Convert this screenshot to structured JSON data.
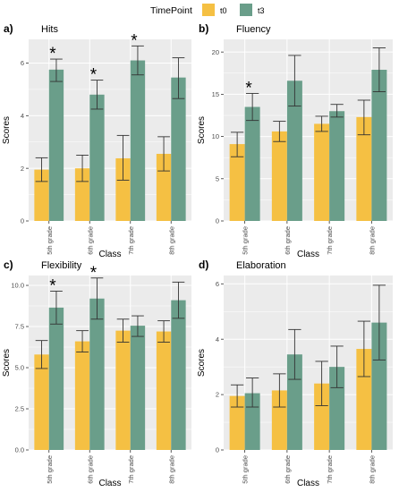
{
  "legend": {
    "title": "TimePoint",
    "items": [
      {
        "label": "t0",
        "color": "#F5C043"
      },
      {
        "label": "t3",
        "color": "#6A9E8A"
      }
    ]
  },
  "colors": {
    "panel_bg": "#EBEBEB",
    "grid": "#FFFFFF",
    "error_bar": "#333333"
  },
  "chart_data": [
    {
      "type": "bar",
      "letter": "a)",
      "title": "Hits",
      "xlabel": "Class",
      "ylabel": "Scores",
      "categories": [
        "5th grade",
        "6th grade",
        "7th grade",
        "8th grade"
      ],
      "ylim": [
        0,
        6.9
      ],
      "yticks": [
        0,
        2,
        4,
        6
      ],
      "yticklabels": [
        "0",
        "2",
        "4",
        "6"
      ],
      "series": [
        {
          "name": "t0",
          "values": [
            1.95,
            2.0,
            2.38,
            2.55
          ],
          "err_low": [
            1.5,
            1.5,
            1.55,
            1.9
          ],
          "err_high": [
            2.4,
            2.5,
            3.25,
            3.2
          ]
        },
        {
          "name": "t3",
          "values": [
            5.75,
            4.8,
            6.1,
            5.45
          ],
          "err_low": [
            5.3,
            4.25,
            5.55,
            4.65
          ],
          "err_high": [
            6.15,
            5.35,
            6.65,
            6.2
          ]
        }
      ],
      "significance": [
        "*",
        "*",
        "*",
        ""
      ]
    },
    {
      "type": "bar",
      "letter": "b)",
      "title": "Fluency",
      "xlabel": "Class",
      "ylabel": "Scores",
      "categories": [
        "5th grade",
        "6th grade",
        "7th grade",
        "8th grade"
      ],
      "ylim": [
        0,
        21.5
      ],
      "yticks": [
        0,
        5,
        10,
        15,
        20
      ],
      "yticklabels": [
        "0",
        "5",
        "10",
        "15",
        "20"
      ],
      "series": [
        {
          "name": "t0",
          "values": [
            9.1,
            10.6,
            11.5,
            12.3
          ],
          "err_low": [
            7.6,
            9.4,
            10.6,
            10.2
          ],
          "err_high": [
            10.5,
            11.8,
            12.4,
            14.3
          ]
        },
        {
          "name": "t3",
          "values": [
            13.5,
            16.6,
            13.0,
            17.9
          ],
          "err_low": [
            11.9,
            13.6,
            12.3,
            15.3
          ],
          "err_high": [
            15.1,
            19.6,
            13.8,
            20.5
          ]
        }
      ],
      "significance": [
        "*",
        "",
        "",
        ""
      ]
    },
    {
      "type": "bar",
      "letter": "c)",
      "title": "Flexibility",
      "xlabel": "Class",
      "ylabel": "Scores",
      "categories": [
        "5th grade",
        "6th grade",
        "7th grade",
        "8th grade"
      ],
      "ylim": [
        0,
        10.6
      ],
      "yticks": [
        0,
        2.5,
        5,
        7.5,
        10
      ],
      "yticklabels": [
        "0.0",
        "2.5",
        "5.0",
        "7.5",
        "10.0"
      ],
      "series": [
        {
          "name": "t0",
          "values": [
            5.8,
            6.6,
            7.25,
            7.2
          ],
          "err_low": [
            4.95,
            5.95,
            6.55,
            6.55
          ],
          "err_high": [
            6.65,
            7.25,
            7.95,
            7.85
          ]
        },
        {
          "name": "t3",
          "values": [
            8.65,
            9.2,
            7.55,
            9.1
          ],
          "err_low": [
            7.65,
            7.95,
            6.9,
            8.0
          ],
          "err_high": [
            9.65,
            10.45,
            8.15,
            10.2
          ]
        }
      ],
      "significance": [
        "*",
        "*",
        "",
        ""
      ]
    },
    {
      "type": "bar",
      "letter": "d)",
      "title": "Elaboration",
      "xlabel": "Class",
      "ylabel": "Scores",
      "categories": [
        "5th grade",
        "6th grade",
        "7th grade",
        "8th grade"
      ],
      "ylim": [
        0,
        6.3
      ],
      "yticks": [
        0,
        2,
        4,
        6
      ],
      "yticklabels": [
        "0",
        "2",
        "4",
        "6"
      ],
      "series": [
        {
          "name": "t0",
          "values": [
            1.95,
            2.15,
            2.4,
            3.65
          ],
          "err_low": [
            1.55,
            1.55,
            1.6,
            2.65
          ],
          "err_high": [
            2.35,
            2.75,
            3.2,
            4.65
          ]
        },
        {
          "name": "t3",
          "values": [
            2.05,
            3.45,
            3.0,
            4.6
          ],
          "err_low": [
            1.55,
            2.55,
            2.25,
            3.25
          ],
          "err_high": [
            2.6,
            4.35,
            3.75,
            5.95
          ]
        }
      ],
      "significance": [
        "",
        "",
        "",
        ""
      ]
    }
  ]
}
